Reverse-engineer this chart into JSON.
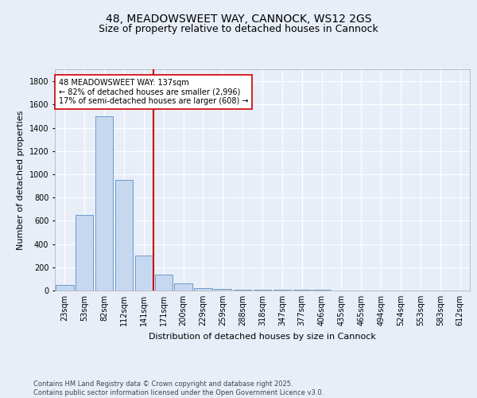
{
  "title1": "48, MEADOWSWEET WAY, CANNOCK, WS12 2GS",
  "title2": "Size of property relative to detached houses in Cannock",
  "xlabel": "Distribution of detached houses by size in Cannock",
  "ylabel": "Number of detached properties",
  "categories": [
    "23sqm",
    "53sqm",
    "82sqm",
    "112sqm",
    "141sqm",
    "171sqm",
    "200sqm",
    "229sqm",
    "259sqm",
    "288sqm",
    "318sqm",
    "347sqm",
    "377sqm",
    "406sqm",
    "435sqm",
    "465sqm",
    "494sqm",
    "524sqm",
    "553sqm",
    "583sqm",
    "612sqm"
  ],
  "values": [
    50,
    650,
    1500,
    950,
    300,
    135,
    65,
    20,
    15,
    10,
    5,
    5,
    5,
    10,
    0,
    0,
    0,
    0,
    0,
    0,
    0
  ],
  "bar_color": "#c5d8f0",
  "bar_edge_color": "#5b8ec4",
  "vline_color": "#cc0000",
  "annotation_text": "48 MEADOWSWEET WAY: 137sqm\n← 82% of detached houses are smaller (2,996)\n17% of semi-detached houses are larger (608) →",
  "annotation_box_color": "white",
  "annotation_box_edge": "#cc0000",
  "background_color": "#e8eef8",
  "grid_color": "white",
  "ylim": [
    0,
    1900
  ],
  "yticks": [
    0,
    200,
    400,
    600,
    800,
    1000,
    1200,
    1400,
    1600,
    1800
  ],
  "footer": "Contains HM Land Registry data © Crown copyright and database right 2025.\nContains public sector information licensed under the Open Government Licence v3.0.",
  "title1_fontsize": 10,
  "title2_fontsize": 9,
  "annotation_fontsize": 7,
  "footer_fontsize": 6,
  "ylabel_fontsize": 8,
  "xlabel_fontsize": 8,
  "tick_fontsize": 7
}
